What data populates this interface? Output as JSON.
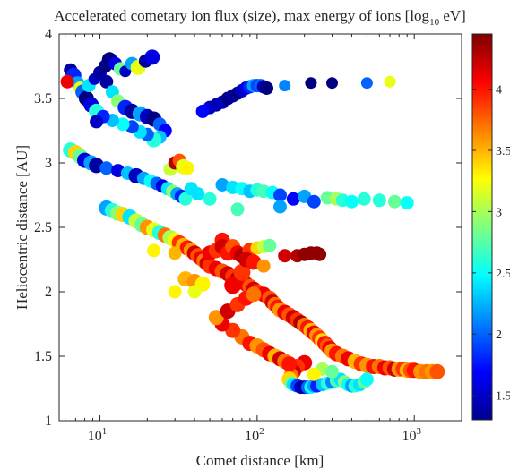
{
  "chart_data": {
    "type": "scatter",
    "title": "Accelerated cometary ion flux (size), max energy of ions [log",
    "title_subscript": "10",
    "title_suffix": " eV]",
    "xlabel": "Comet distance [km]",
    "ylabel": "Heliocentric distance [AU]",
    "xscale": "log",
    "xlim": [
      5.5,
      2000
    ],
    "ylim": [
      1,
      4
    ],
    "grid": false,
    "colormap": "jet",
    "x_ticks": [
      {
        "value": 10,
        "base": "10",
        "exp": "1"
      },
      {
        "value": 100,
        "base": "10",
        "exp": "2"
      },
      {
        "value": 1000,
        "base": "10",
        "exp": "3"
      }
    ],
    "y_ticks": [
      "1",
      "1.5",
      "2",
      "2.5",
      "3",
      "3.5",
      "4"
    ],
    "colorbar": {
      "range": [
        1.3,
        4.45
      ],
      "ticks": [
        "1.5",
        "2",
        "2.5",
        "3",
        "3.5",
        "4"
      ]
    },
    "points": [
      [
        6.5,
        3.72,
        1.4,
        4
      ],
      [
        6.8,
        3.68,
        1.8,
        5
      ],
      [
        7.2,
        3.62,
        2.2,
        4
      ],
      [
        7.5,
        3.58,
        3.2,
        4
      ],
      [
        6.2,
        3.63,
        4.1,
        4
      ],
      [
        7.8,
        3.55,
        2.0,
        5
      ],
      [
        8.2,
        3.5,
        1.3,
        5
      ],
      [
        8.8,
        3.45,
        1.6,
        5
      ],
      [
        9.5,
        3.4,
        2.6,
        5
      ],
      [
        8.5,
        3.6,
        2.4,
        4
      ],
      [
        9.2,
        3.65,
        1.5,
        3
      ],
      [
        10,
        3.7,
        1.4,
        4
      ],
      [
        10.8,
        3.75,
        1.2,
        4
      ],
      [
        11.5,
        3.8,
        1.3,
        5
      ],
      [
        12.5,
        3.77,
        1.6,
        4
      ],
      [
        13.5,
        3.73,
        2.8,
        4
      ],
      [
        14.5,
        3.71,
        1.5,
        3
      ],
      [
        16,
        3.77,
        2.2,
        4
      ],
      [
        17.5,
        3.74,
        3.2,
        5
      ],
      [
        19.5,
        3.79,
        1.4,
        4
      ],
      [
        21.5,
        3.82,
        1.6,
        5
      ],
      [
        11,
        3.63,
        1.4,
        4
      ],
      [
        12,
        3.55,
        2.4,
        4
      ],
      [
        13,
        3.48,
        2.9,
        4
      ],
      [
        14.5,
        3.43,
        1.8,
        5
      ],
      [
        16,
        3.4,
        1.4,
        5
      ],
      [
        18,
        3.38,
        2.2,
        5
      ],
      [
        20,
        3.36,
        1.5,
        5
      ],
      [
        22,
        3.34,
        1.3,
        5
      ],
      [
        24,
        3.3,
        2.0,
        4
      ],
      [
        26,
        3.25,
        1.7,
        4
      ],
      [
        24,
        3.2,
        2.3,
        4
      ],
      [
        22,
        3.18,
        2.6,
        5
      ],
      [
        20,
        3.22,
        2.0,
        4
      ],
      [
        18,
        3.24,
        2.4,
        4
      ],
      [
        16,
        3.28,
        1.9,
        4
      ],
      [
        14,
        3.3,
        2.5,
        4
      ],
      [
        12,
        3.33,
        2.3,
        4
      ],
      [
        10.5,
        3.36,
        1.8,
        4
      ],
      [
        9.5,
        3.32,
        1.5,
        4
      ],
      [
        6.5,
        3.1,
        2.6,
        5
      ],
      [
        7,
        3.08,
        3.4,
        5
      ],
      [
        7.5,
        3.05,
        2.8,
        5
      ],
      [
        8,
        3.02,
        1.6,
        5
      ],
      [
        8.8,
        3.0,
        2.2,
        5
      ],
      [
        9.5,
        2.98,
        1.4,
        5
      ],
      [
        11,
        2.96,
        2.0,
        4
      ],
      [
        13,
        2.94,
        1.6,
        4
      ],
      [
        15,
        2.92,
        2.3,
        4
      ],
      [
        17,
        2.9,
        1.5,
        5
      ],
      [
        19,
        2.88,
        2.2,
        4
      ],
      [
        21,
        2.86,
        2.5,
        4
      ],
      [
        23,
        2.84,
        2.0,
        4
      ],
      [
        25,
        2.82,
        1.6,
        4
      ],
      [
        27,
        2.8,
        2.4,
        4
      ],
      [
        29,
        2.78,
        2.9,
        4
      ],
      [
        31,
        2.76,
        2.2,
        4
      ],
      [
        33,
        2.74,
        1.8,
        4
      ],
      [
        35,
        2.72,
        2.6,
        4
      ],
      [
        28,
        2.95,
        3.1,
        4
      ],
      [
        30,
        3.0,
        4.3,
        4
      ],
      [
        32,
        3.02,
        3.8,
        4
      ],
      [
        34,
        2.97,
        3.2,
        5
      ],
      [
        36,
        2.96,
        3.3,
        4
      ],
      [
        38,
        2.8,
        2.4,
        4
      ],
      [
        42,
        2.76,
        2.4,
        4
      ],
      [
        50,
        2.72,
        2.6,
        4
      ],
      [
        60,
        2.83,
        2.2,
        4
      ],
      [
        70,
        2.81,
        2.4,
        4
      ],
      [
        80,
        2.8,
        2.5,
        4
      ],
      [
        90,
        2.78,
        2.3,
        4
      ],
      [
        100,
        2.79,
        2.6,
        4
      ],
      [
        110,
        2.78,
        2.7,
        4
      ],
      [
        125,
        2.77,
        2.5,
        4
      ],
      [
        140,
        2.75,
        1.9,
        4
      ],
      [
        170,
        2.72,
        1.7,
        4
      ],
      [
        200,
        2.74,
        2.2,
        4
      ],
      [
        230,
        2.7,
        1.9,
        4
      ],
      [
        280,
        2.73,
        2.8,
        4
      ],
      [
        320,
        2.72,
        3.0,
        4
      ],
      [
        350,
        2.71,
        2.6,
        4
      ],
      [
        400,
        2.7,
        2.5,
        4
      ],
      [
        480,
        2.72,
        2.6,
        4
      ],
      [
        600,
        2.71,
        2.6,
        4
      ],
      [
        750,
        2.7,
        2.8,
        4
      ],
      [
        900,
        2.69,
        2.5,
        4
      ],
      [
        140,
        2.66,
        2.2,
        4
      ],
      [
        75,
        2.64,
        2.7,
        4
      ],
      [
        11,
        2.65,
        2.2,
        5
      ],
      [
        12,
        2.63,
        2.6,
        5
      ],
      [
        13,
        2.61,
        2.9,
        5
      ],
      [
        14,
        2.6,
        3.4,
        5
      ],
      [
        15.5,
        2.58,
        2.4,
        5
      ],
      [
        17,
        2.55,
        3.1,
        5
      ],
      [
        18.5,
        2.52,
        2.8,
        5
      ],
      [
        20,
        2.5,
        3.6,
        5
      ],
      [
        22,
        2.48,
        3.2,
        5
      ],
      [
        24,
        2.46,
        2.6,
        5
      ],
      [
        26,
        2.44,
        3.7,
        5
      ],
      [
        28,
        2.42,
        3.0,
        5
      ],
      [
        30,
        2.4,
        3.3,
        5
      ],
      [
        32,
        2.38,
        3.9,
        5
      ],
      [
        34,
        2.36,
        3.5,
        5
      ],
      [
        36,
        2.34,
        4.0,
        5
      ],
      [
        38,
        2.32,
        3.6,
        5
      ],
      [
        40,
        2.3,
        4.2,
        5
      ],
      [
        42,
        2.28,
        3.8,
        5
      ],
      [
        44,
        2.26,
        4.1,
        5
      ],
      [
        46,
        2.24,
        3.7,
        5
      ],
      [
        48,
        2.22,
        4.2,
        5
      ],
      [
        50,
        2.2,
        3.9,
        5
      ],
      [
        55,
        2.18,
        4.1,
        5
      ],
      [
        60,
        2.16,
        3.8,
        5
      ],
      [
        65,
        2.14,
        4.2,
        5
      ],
      [
        70,
        2.12,
        3.9,
        5
      ],
      [
        75,
        2.1,
        4.3,
        5
      ],
      [
        80,
        2.08,
        3.6,
        5
      ],
      [
        85,
        2.06,
        4.1,
        5
      ],
      [
        90,
        2.04,
        3.8,
        5
      ],
      [
        95,
        2.02,
        4.2,
        5
      ],
      [
        100,
        2.0,
        3.9,
        5
      ],
      [
        110,
        1.98,
        4.1,
        5
      ],
      [
        120,
        1.95,
        3.8,
        5
      ],
      [
        125,
        1.92,
        4.2,
        5
      ],
      [
        130,
        1.9,
        3.7,
        5
      ],
      [
        135,
        1.88,
        4.0,
        5
      ],
      [
        140,
        1.86,
        3.6,
        5
      ],
      [
        150,
        1.84,
        4.1,
        5
      ],
      [
        160,
        1.82,
        3.8,
        5
      ],
      [
        170,
        1.8,
        4.2,
        5
      ],
      [
        180,
        1.78,
        3.9,
        5
      ],
      [
        190,
        1.76,
        4.3,
        5
      ],
      [
        200,
        1.74,
        3.7,
        5
      ],
      [
        210,
        1.72,
        4.0,
        5
      ],
      [
        220,
        1.7,
        3.5,
        5
      ],
      [
        230,
        1.68,
        4.1,
        5
      ],
      [
        240,
        1.66,
        3.6,
        5
      ],
      [
        250,
        1.64,
        3.9,
        5
      ],
      [
        260,
        1.62,
        3.4,
        5
      ],
      [
        270,
        1.6,
        4.0,
        5
      ],
      [
        280,
        1.58,
        3.8,
        5
      ],
      [
        290,
        1.56,
        4.1,
        5
      ],
      [
        300,
        1.54,
        3.6,
        5
      ],
      [
        320,
        1.52,
        4.0,
        5
      ],
      [
        350,
        1.5,
        3.7,
        5
      ],
      [
        380,
        1.48,
        4.1,
        5
      ],
      [
        420,
        1.46,
        3.5,
        5
      ],
      [
        460,
        1.44,
        3.9,
        5
      ],
      [
        500,
        1.43,
        3.6,
        5
      ],
      [
        550,
        1.42,
        4.0,
        5
      ],
      [
        600,
        1.42,
        3.7,
        5
      ],
      [
        650,
        1.41,
        4.1,
        5
      ],
      [
        700,
        1.41,
        3.8,
        5
      ],
      [
        750,
        1.4,
        4.2,
        5
      ],
      [
        800,
        1.4,
        3.6,
        5
      ],
      [
        850,
        1.4,
        3.9,
        5
      ],
      [
        900,
        1.39,
        3.5,
        5
      ],
      [
        950,
        1.39,
        3.8,
        5
      ],
      [
        1000,
        1.39,
        4.0,
        5
      ],
      [
        1100,
        1.38,
        3.6,
        5
      ],
      [
        1200,
        1.38,
        3.7,
        5
      ],
      [
        1300,
        1.38,
        3.6,
        5
      ],
      [
        1400,
        1.38,
        3.8,
        5
      ],
      [
        200,
        1.45,
        4.1,
        5
      ],
      [
        180,
        1.42,
        3.9,
        5
      ],
      [
        170,
        1.38,
        4.2,
        5
      ],
      [
        165,
        1.35,
        3.7,
        5
      ],
      [
        160,
        1.32,
        3.4,
        5
      ],
      [
        165,
        1.29,
        2.8,
        4
      ],
      [
        170,
        1.28,
        2.4,
        4
      ],
      [
        180,
        1.27,
        1.9,
        4
      ],
      [
        190,
        1.26,
        1.5,
        4
      ],
      [
        200,
        1.26,
        1.4,
        4
      ],
      [
        210,
        1.26,
        2.0,
        4
      ],
      [
        220,
        1.26,
        2.5,
        4
      ],
      [
        230,
        1.27,
        2.2,
        4
      ],
      [
        240,
        1.27,
        1.8,
        4
      ],
      [
        260,
        1.28,
        2.3,
        4
      ],
      [
        280,
        1.29,
        2.6,
        4
      ],
      [
        300,
        1.3,
        2.1,
        4
      ],
      [
        320,
        1.31,
        2.7,
        4
      ],
      [
        340,
        1.32,
        2.4,
        4
      ],
      [
        360,
        1.3,
        2.9,
        4
      ],
      [
        380,
        1.28,
        2.5,
        4
      ],
      [
        400,
        1.27,
        2.2,
        4
      ],
      [
        420,
        1.27,
        2.6,
        4
      ],
      [
        450,
        1.28,
        2.4,
        4
      ],
      [
        480,
        1.3,
        2.8,
        4
      ],
      [
        500,
        1.32,
        2.5,
        4
      ],
      [
        260,
        1.4,
        3.0,
        4
      ],
      [
        300,
        1.38,
        2.8,
        4
      ],
      [
        230,
        1.36,
        3.3,
        4
      ],
      [
        80,
        1.65,
        3.7,
        5
      ],
      [
        90,
        1.6,
        4.0,
        5
      ],
      [
        100,
        1.58,
        3.6,
        5
      ],
      [
        110,
        1.55,
        3.8,
        5
      ],
      [
        120,
        1.52,
        4.1,
        5
      ],
      [
        130,
        1.5,
        3.5,
        5
      ],
      [
        140,
        1.48,
        4.2,
        5
      ],
      [
        150,
        1.46,
        3.7,
        5
      ],
      [
        160,
        1.44,
        4.0,
        5
      ],
      [
        70,
        1.7,
        3.9,
        5
      ],
      [
        60,
        1.75,
        4.1,
        5
      ],
      [
        55,
        1.8,
        3.6,
        5
      ],
      [
        65,
        1.85,
        4.2,
        5
      ],
      [
        75,
        1.9,
        3.9,
        5
      ],
      [
        85,
        1.95,
        4.0,
        5
      ],
      [
        95,
        1.98,
        3.7,
        5
      ],
      [
        70,
        2.05,
        4.1,
        6
      ],
      [
        80,
        2.15,
        3.9,
        6
      ],
      [
        90,
        2.25,
        3.8,
        5
      ],
      [
        75,
        2.3,
        4.2,
        5
      ],
      [
        65,
        2.35,
        3.7,
        5
      ],
      [
        60,
        2.4,
        4.0,
        5
      ],
      [
        50,
        2.3,
        4.1,
        5
      ],
      [
        55,
        2.32,
        3.9,
        5
      ],
      [
        60,
        2.35,
        4.2,
        5
      ],
      [
        65,
        2.3,
        4.0,
        5
      ],
      [
        70,
        2.35,
        3.8,
        5
      ],
      [
        75,
        2.3,
        4.1,
        5
      ],
      [
        80,
        2.28,
        4.3,
        5
      ],
      [
        90,
        2.32,
        3.9,
        5
      ],
      [
        100,
        2.34,
        3.4,
        4
      ],
      [
        110,
        2.35,
        3.1,
        4
      ],
      [
        120,
        2.36,
        2.8,
        4
      ],
      [
        85,
        2.25,
        4.2,
        5
      ],
      [
        95,
        2.23,
        4.0,
        5
      ],
      [
        110,
        2.2,
        3.6,
        4
      ],
      [
        180,
        2.28,
        4.3,
        4
      ],
      [
        200,
        2.29,
        4.4,
        4
      ],
      [
        220,
        2.3,
        4.4,
        4
      ],
      [
        240,
        2.3,
        4.4,
        4
      ],
      [
        250,
        2.29,
        4.4,
        4
      ],
      [
        150,
        2.28,
        4.2,
        4
      ],
      [
        35,
        2.1,
        3.5,
        5
      ],
      [
        40,
        2.08,
        3.6,
        5
      ],
      [
        45,
        2.06,
        3.3,
        5
      ],
      [
        30,
        2.3,
        3.5,
        4
      ],
      [
        22,
        2.32,
        3.3,
        4
      ],
      [
        30,
        2.0,
        3.3,
        4
      ],
      [
        40,
        2.0,
        3.2,
        4
      ],
      [
        55,
        3.45,
        1.4,
        4
      ],
      [
        60,
        3.47,
        1.5,
        4
      ],
      [
        65,
        3.5,
        1.3,
        4
      ],
      [
        70,
        3.52,
        1.4,
        4
      ],
      [
        75,
        3.54,
        1.3,
        4
      ],
      [
        80,
        3.56,
        1.5,
        4
      ],
      [
        85,
        3.58,
        1.6,
        4
      ],
      [
        90,
        3.59,
        1.8,
        4
      ],
      [
        95,
        3.6,
        2.2,
        4
      ],
      [
        100,
        3.6,
        1.9,
        4
      ],
      [
        105,
        3.6,
        2.0,
        4
      ],
      [
        110,
        3.59,
        1.5,
        4
      ],
      [
        115,
        3.58,
        1.3,
        4
      ],
      [
        50,
        3.43,
        1.5,
        4
      ],
      [
        45,
        3.4,
        1.7,
        4
      ],
      [
        150,
        3.6,
        2.1,
        3
      ],
      [
        220,
        3.62,
        1.3,
        3
      ],
      [
        300,
        3.62,
        1.3,
        3
      ],
      [
        500,
        3.62,
        2.0,
        3
      ],
      [
        700,
        3.63,
        3.2,
        3
      ]
    ]
  }
}
